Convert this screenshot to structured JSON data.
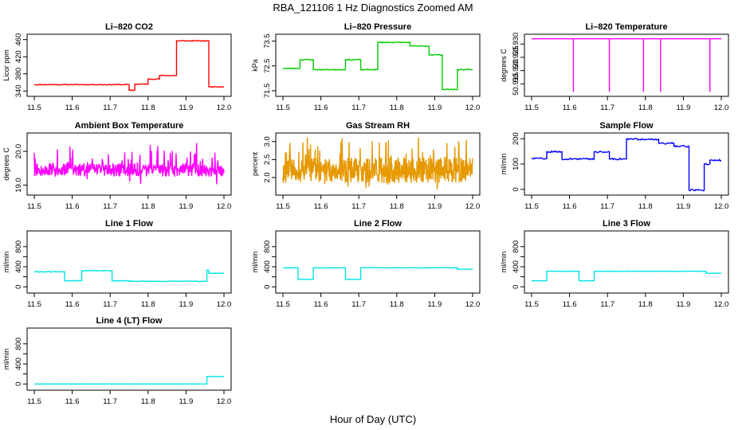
{
  "figure": {
    "title": "RBA_121106  1 Hz Diagnostics Zoomed AM",
    "xlabel": "Hour of Day (UTC)"
  },
  "chart_data": [
    {
      "type": "line",
      "title": "Li–820 CO2",
      "ylabel": "Licor ppm",
      "color": "#ff0000",
      "xlim": [
        11.5,
        12.0
      ],
      "ylim": [
        335,
        465
      ],
      "x_ticks": [
        "11.5",
        "11.6",
        "11.7",
        "11.8",
        "11.9",
        "12.0"
      ],
      "y_ticks": [
        340,
        380,
        420,
        460
      ],
      "y_tick_labels": [
        "340",
        "380",
        "420",
        "460"
      ],
      "noise": 1,
      "seed": 11,
      "series": [
        {
          "x": [
            11.5,
            11.75,
            11.75,
            11.765,
            11.765,
            11.8,
            11.8,
            11.83,
            11.83,
            11.875,
            11.875,
            11.96,
            11.96,
            12.0
          ],
          "values": [
            355,
            355,
            342,
            342,
            356,
            356,
            368,
            368,
            376,
            376,
            457,
            457,
            350,
            350
          ]
        }
      ]
    },
    {
      "type": "line",
      "title": "Li–820 Pressure",
      "ylabel": "kPa",
      "color": "#00cc00",
      "xlim": [
        11.5,
        12.0
      ],
      "ylim": [
        71.4,
        73.65
      ],
      "x_ticks": [
        "11.5",
        "11.6",
        "11.7",
        "11.8",
        "11.9",
        "12.0"
      ],
      "y_ticks": [
        71.5,
        72.5,
        73.5
      ],
      "y_tick_labels": [
        "71.5",
        "72.5",
        "73.5"
      ],
      "noise": 0.02,
      "seed": 23,
      "series": [
        {
          "x": [
            11.5,
            11.545,
            11.545,
            11.58,
            11.58,
            11.665,
            11.665,
            11.705,
            11.705,
            11.75,
            11.75,
            11.835,
            11.835,
            11.885,
            11.885,
            11.92,
            11.92,
            11.96,
            11.96,
            12.0
          ],
          "values": [
            72.4,
            72.4,
            72.75,
            72.75,
            72.35,
            72.35,
            72.75,
            72.75,
            72.35,
            72.35,
            73.45,
            73.45,
            73.3,
            73.3,
            72.95,
            72.95,
            71.55,
            71.55,
            72.35,
            72.35
          ]
        }
      ]
    },
    {
      "type": "line",
      "title": "Li–820 Temperature",
      "ylabel": "degrees C",
      "color": "#ff00ff",
      "xlim": [
        11.5,
        12.0
      ],
      "ylim": [
        50.9115,
        50.9325
      ],
      "x_ticks": [
        "11.5",
        "11.6",
        "11.7",
        "11.8",
        "11.9",
        "12.0"
      ],
      "y_ticks": [
        50.915,
        50.92,
        50.925,
        50.93
      ],
      "y_tick_labels": [
        "50.915",
        "50.920",
        "50.925",
        "50.930"
      ],
      "noise": 0,
      "seed": 5,
      "series": [
        {
          "x": [
            11.5,
            11.61,
            11.61,
            11.61,
            11.705,
            11.705,
            11.705,
            11.795,
            11.795,
            11.795,
            11.84,
            11.84,
            11.84,
            11.97,
            11.97,
            11.97,
            12.0
          ],
          "values": [
            50.932,
            50.932,
            50.912,
            50.932,
            50.932,
            50.912,
            50.932,
            50.932,
            50.912,
            50.932,
            50.932,
            50.912,
            50.932,
            50.932,
            50.912,
            50.932,
            50.932
          ]
        }
      ]
    },
    {
      "type": "line",
      "title": "Ambient Box Temperature",
      "ylabel": "degrees C",
      "color": "#ff00ff",
      "xlim": [
        11.5,
        12.0
      ],
      "ylim": [
        18.8,
        20.45
      ],
      "x_ticks": [
        "11.5",
        "11.6",
        "11.7",
        "11.8",
        "11.9",
        "12.0"
      ],
      "y_ticks": [
        19.0,
        20.0
      ],
      "y_tick_labels": [
        "19.0",
        "20.0"
      ],
      "noise": 0,
      "seed": 31,
      "random_band": {
        "center": 19.45,
        "spread": 0.2,
        "spike_prob": 0.12,
        "spike_size": 0.75,
        "n": 500
      }
    },
    {
      "type": "line",
      "title": "Gas Stream RH",
      "ylabel": "percent",
      "color": "#e69900",
      "xlim": [
        11.5,
        12.0
      ],
      "ylim": [
        1.6,
        3.15
      ],
      "x_ticks": [
        "11.5",
        "11.6",
        "11.7",
        "11.8",
        "11.9",
        "12.0"
      ],
      "y_ticks": [
        2.0,
        2.5,
        3.0
      ],
      "y_tick_labels": [
        "2.0",
        "2.5",
        "3.0"
      ],
      "noise": 0,
      "seed": 47,
      "random_band": {
        "center": 2.2,
        "spread": 0.35,
        "spike_prob": 0.2,
        "spike_size": 0.7,
        "n": 600
      }
    },
    {
      "type": "line",
      "title": "Sample Flow",
      "ylabel": "ml/min",
      "color": "#0000ff",
      "xlim": [
        11.5,
        12.0
      ],
      "ylim": [
        -10,
        210
      ],
      "x_ticks": [
        "11.5",
        "11.6",
        "11.7",
        "11.8",
        "11.9",
        "12.0"
      ],
      "y_ticks": [
        0,
        100,
        200
      ],
      "y_tick_labels": [
        "0",
        "100",
        "200"
      ],
      "noise": 3,
      "seed": 59,
      "series": [
        {
          "x": [
            11.5,
            11.54,
            11.54,
            11.58,
            11.58,
            11.665,
            11.665,
            11.705,
            11.705,
            11.75,
            11.75,
            11.835,
            11.835,
            11.875,
            11.875,
            11.915,
            11.915,
            11.955,
            11.955,
            11.97,
            11.97,
            12.0
          ],
          "values": [
            122,
            122,
            148,
            148,
            120,
            120,
            148,
            148,
            120,
            120,
            198,
            198,
            182,
            182,
            170,
            170,
            -3,
            -3,
            100,
            100,
            115,
            115
          ]
        }
      ]
    },
    {
      "type": "line",
      "title": "Line 1 Flow",
      "ylabel": "ml/min",
      "color": "#00e5e5",
      "xlim": [
        11.5,
        12.0
      ],
      "ylim": [
        -60,
        1050
      ],
      "x_ticks": [
        "11.5",
        "11.6",
        "11.7",
        "11.8",
        "11.9",
        "12.0"
      ],
      "y_ticks": [
        0,
        200,
        400,
        600,
        800
      ],
      "y_tick_labels": [
        "0",
        "400",
        "800"
      ],
      "noise": 8,
      "seed": 61,
      "series": [
        {
          "x": [
            11.5,
            11.58,
            11.58,
            11.625,
            11.625,
            11.705,
            11.705,
            11.75,
            11.75,
            11.955,
            11.955,
            11.96,
            11.96,
            12.0
          ],
          "values": [
            300,
            300,
            120,
            120,
            320,
            320,
            120,
            120,
            110,
            110,
            330,
            330,
            270,
            270
          ]
        }
      ]
    },
    {
      "type": "line",
      "title": "Line 2 Flow",
      "ylabel": "ml/min",
      "color": "#00e5e5",
      "xlim": [
        11.5,
        12.0
      ],
      "ylim": [
        -60,
        1050
      ],
      "x_ticks": [
        "11.5",
        "11.6",
        "11.7",
        "11.8",
        "11.9",
        "12.0"
      ],
      "y_ticks": [
        0,
        200,
        400,
        600,
        800
      ],
      "y_tick_labels": [
        "0",
        "400",
        "800"
      ],
      "noise": 2,
      "seed": 67,
      "series": [
        {
          "x": [
            11.5,
            11.54,
            11.54,
            11.58,
            11.58,
            11.665,
            11.665,
            11.705,
            11.705,
            11.96,
            11.96,
            12.0
          ],
          "values": [
            380,
            380,
            150,
            150,
            380,
            380,
            150,
            150,
            380,
            380,
            350,
            350
          ]
        }
      ]
    },
    {
      "type": "line",
      "title": "Line 3 Flow",
      "ylabel": "ml/min",
      "color": "#00e5e5",
      "xlim": [
        11.5,
        12.0
      ],
      "ylim": [
        -60,
        1050
      ],
      "x_ticks": [
        "11.5",
        "11.6",
        "11.7",
        "11.8",
        "11.9",
        "12.0"
      ],
      "y_ticks": [
        0,
        200,
        400,
        600,
        800
      ],
      "y_tick_labels": [
        "0",
        "400",
        "800"
      ],
      "noise": 4,
      "seed": 71,
      "series": [
        {
          "x": [
            11.5,
            11.54,
            11.54,
            11.625,
            11.625,
            11.665,
            11.665,
            11.96,
            11.96,
            12.0
          ],
          "values": [
            120,
            120,
            310,
            310,
            120,
            120,
            310,
            310,
            270,
            270
          ]
        }
      ]
    },
    {
      "type": "line",
      "title": "Line 4 (LT) Flow",
      "ylabel": "ml/min",
      "color": "#00e5e5",
      "xlim": [
        11.5,
        12.0
      ],
      "ylim": [
        -60,
        1050
      ],
      "x_ticks": [
        "11.5",
        "11.6",
        "11.7",
        "11.8",
        "11.9",
        "12.0"
      ],
      "y_ticks": [
        0,
        200,
        400,
        600,
        800
      ],
      "y_tick_labels": [
        "0",
        "400",
        "800"
      ],
      "noise": 1,
      "seed": 79,
      "series": [
        {
          "x": [
            11.5,
            11.955,
            11.955,
            12.0
          ],
          "values": [
            0,
            0,
            150,
            150
          ]
        }
      ]
    }
  ]
}
